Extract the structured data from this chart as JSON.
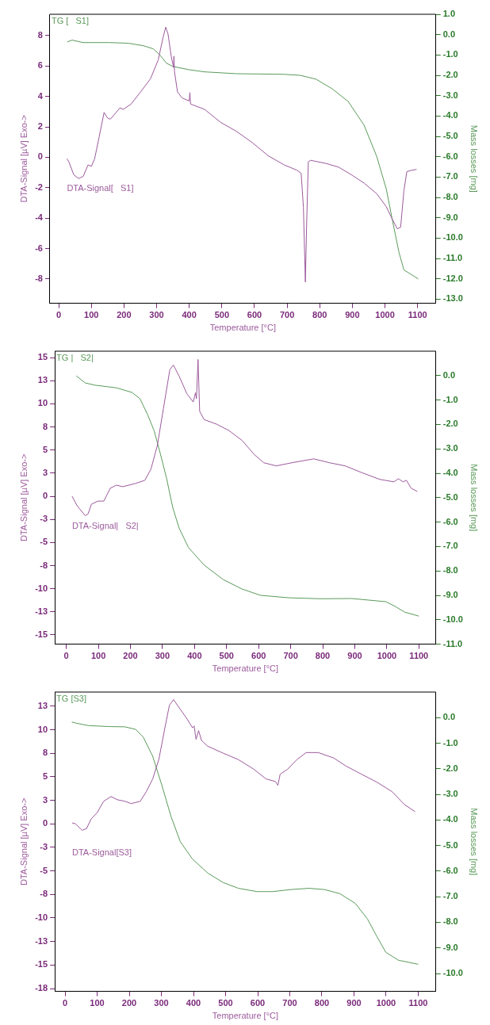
{
  "chart_data": [
    {
      "type": "line",
      "xlabel": "Temperature [°C]",
      "ylabel": "DTA-Signal [µV] Exo->",
      "y2label": "Mass losses [mg]",
      "legend": false,
      "xlim": [
        -27,
        1156
      ],
      "xticks": [
        0,
        100,
        200,
        300,
        400,
        500,
        600,
        700,
        800,
        900,
        1000,
        1100
      ],
      "ylim": [
        -9.6,
        9.4
      ],
      "yticks": [
        -8,
        -6,
        -4,
        -2,
        0,
        2,
        4,
        6,
        8
      ],
      "y2lim": [
        -13.2,
        1.0
      ],
      "y2ticks": [
        {
          "value": 1,
          "label": "1.0"
        },
        {
          "value": 0,
          "label": "0.0"
        },
        {
          "value": -1,
          "label": "-1.0"
        },
        {
          "value": -2,
          "label": "-2.0"
        },
        {
          "value": -3,
          "label": "-3.0"
        },
        {
          "value": -4,
          "label": "-4.0"
        },
        {
          "value": -5,
          "label": "-5.0"
        },
        {
          "value": -6,
          "label": "-6.0"
        },
        {
          "value": -7,
          "label": "-7.0"
        },
        {
          "value": -8,
          "label": "-8.0"
        },
        {
          "value": -9,
          "label": "-9.0"
        },
        {
          "value": -10,
          "label": "-10.0"
        },
        {
          "value": -11,
          "label": "-11.0"
        },
        {
          "value": -12,
          "label": "-12.0"
        },
        {
          "value": -13,
          "label": "-13.0"
        }
      ],
      "series": [
        {
          "name": "DTA-Signal[   S1]",
          "color": "#9c5a9c",
          "x": [
            25,
            31,
            46,
            61,
            75,
            90,
            100,
            110,
            124,
            139,
            149,
            158,
            168,
            188,
            198,
            222,
            251,
            281,
            305,
            320,
            328,
            335,
            345,
            352,
            353,
            355,
            364,
            378,
            400,
            402,
            404,
            447,
            496,
            545,
            594,
            642,
            691,
            730,
            743,
            750,
            756,
            760,
            765,
            772,
            818,
            858,
            897,
            936,
            975,
            1004,
            1023,
            1038,
            1048,
            1058,
            1067,
            1082,
            1097
          ],
          "values": [
            -0.1,
            -0.3,
            -1.15,
            -1.4,
            -1.25,
            -0.5,
            -0.6,
            -0.1,
            1.35,
            2.95,
            2.6,
            2.5,
            2.75,
            3.25,
            3.15,
            3.5,
            4.3,
            5.15,
            6.4,
            7.9,
            8.55,
            8.1,
            6.6,
            5.9,
            6.65,
            5.6,
            4.3,
            3.9,
            3.7,
            4.25,
            3.5,
            3.15,
            2.3,
            1.7,
            0.95,
            0.1,
            -0.5,
            -0.85,
            -1.05,
            -3.3,
            -8.2,
            -4.3,
            -0.3,
            -0.2,
            -0.4,
            -0.65,
            -1.15,
            -1.7,
            -2.4,
            -3.25,
            -4.1,
            -4.7,
            -4.6,
            -2.2,
            -0.95,
            -0.85,
            -0.8
          ]
        },
        {
          "name": "TG [   S1]",
          "color": "#5a9a5a",
          "axis": "y2",
          "x": [
            26,
            41,
            75,
            154,
            212,
            261,
            290,
            310,
            330,
            349,
            398,
            447,
            545,
            691,
            740,
            789,
            838,
            887,
            936,
            975,
            1004,
            1023,
            1043,
            1058,
            1102
          ],
          "values": [
            -0.36,
            -0.27,
            -0.39,
            -0.39,
            -0.42,
            -0.55,
            -0.7,
            -1.0,
            -1.4,
            -1.56,
            -1.72,
            -1.83,
            -1.92,
            -1.95,
            -2.0,
            -2.19,
            -2.66,
            -3.28,
            -4.45,
            -6.0,
            -7.58,
            -9.14,
            -10.7,
            -11.56,
            -12.0
          ]
        }
      ]
    },
    {
      "type": "line",
      "xlabel": "Temperature [°C]",
      "ylabel": "DTA-Signal [µV] Exo->",
      "y2label": "Mass losses [mg]",
      "legend": false,
      "xlim": [
        -36,
        1153
      ],
      "xticks": [
        0,
        100,
        200,
        300,
        400,
        500,
        600,
        700,
        800,
        900,
        1000,
        1100
      ],
      "ylim": [
        -16,
        15.7
      ],
      "yticks": [
        15,
        {
          "value": 12.5,
          "label": "13"
        },
        10,
        {
          "value": 7.5,
          "label": "8"
        },
        5,
        {
          "value": 2.5,
          "label": "3"
        },
        0,
        {
          "value": -2.5,
          "label": "-3"
        },
        -5,
        {
          "value": -7.5,
          "label": "-8"
        },
        -10,
        {
          "value": -12.5,
          "label": "-13"
        },
        -15
      ],
      "y2lim": [
        -11,
        1
      ],
      "y2ticks": [
        {
          "value": 0,
          "label": "0.0"
        },
        {
          "value": -1,
          "label": "-1.0"
        },
        {
          "value": -2,
          "label": "-2.0"
        },
        {
          "value": -3,
          "label": "-3.0"
        },
        {
          "value": -4,
          "label": "-4.0"
        },
        {
          "value": -5,
          "label": "-5.0"
        },
        {
          "value": -6,
          "label": "-6.0"
        },
        {
          "value": -7,
          "label": "-7.0"
        },
        {
          "value": -8,
          "label": "-8.0"
        },
        {
          "value": -9,
          "label": "-9.0"
        },
        {
          "value": -10,
          "label": "-10.0"
        },
        {
          "value": -11,
          "label": "-11.0"
        }
      ],
      "series": [
        {
          "name": "DTA-Signal|   S2|",
          "color": "#9c5a9c",
          "x": [
            18,
            34,
            59,
            68,
            78,
            98,
            117,
            137,
            156,
            176,
            215,
            245,
            264,
            284,
            303,
            323,
            334,
            352,
            376,
            396,
            403,
            406,
            411,
            416,
            430,
            469,
            508,
            548,
            587,
            616,
            655,
            704,
            772,
            821,
            870,
            919,
            978,
            1022,
            1036,
            1051,
            1061,
            1076,
            1095
          ],
          "values": [
            0,
            -1.04,
            -2.1,
            -1.9,
            -0.87,
            -0.52,
            -0.52,
            0.87,
            1.2,
            1.04,
            1.38,
            1.73,
            2.94,
            5.5,
            9.5,
            13.7,
            14.2,
            13.0,
            11.1,
            10.2,
            11.2,
            10.55,
            14.8,
            9.2,
            8.3,
            7.8,
            7.1,
            6.05,
            4.5,
            3.63,
            3.29,
            3.63,
            4.05,
            3.63,
            3.29,
            2.6,
            1.83,
            1.56,
            1.9,
            1.56,
            1.73,
            0.87,
            0.52
          ]
        },
        {
          "name": "TG |   S2|",
          "color": "#5a9a5a",
          "axis": "y2",
          "x": [
            31,
            59,
            88,
            156,
            205,
            230,
            254,
            274,
            293,
            313,
            332,
            352,
            381,
            430,
            489,
            548,
            606,
            694,
            792,
            890,
            997,
            1027,
            1056,
            1100
          ],
          "values": [
            -0.01,
            -0.3,
            -0.39,
            -0.5,
            -0.69,
            -0.95,
            -1.61,
            -2.26,
            -3.18,
            -4.22,
            -5.4,
            -6.25,
            -7.04,
            -7.76,
            -8.35,
            -8.74,
            -9.0,
            -9.1,
            -9.14,
            -9.13,
            -9.26,
            -9.46,
            -9.69,
            -9.85
          ]
        }
      ]
    },
    {
      "type": "line",
      "xlabel": "Temperature [°C]",
      "ylabel": "DTA-Signal [µV] Exo->",
      "y2label": "Mass losses [mg]",
      "legend": false,
      "xlim": [
        -32,
        1155
      ],
      "xticks": [
        0,
        100,
        200,
        300,
        400,
        500,
        600,
        700,
        800,
        900,
        1000,
        1100
      ],
      "ylim": [
        -17.8,
        14
      ],
      "yticks": [
        {
          "value": 12.5,
          "label": "13"
        },
        10,
        {
          "value": 7.5,
          "label": "8"
        },
        5,
        {
          "value": 2.5,
          "label": "3"
        },
        0,
        {
          "value": -2.5,
          "label": "-3"
        },
        -5,
        {
          "value": -7.5,
          "label": "-8"
        },
        -10,
        {
          "value": -12.5,
          "label": "-13"
        },
        -15,
        {
          "value": -17.5,
          "label": "-18"
        }
      ],
      "y2lim": [
        -10.7,
        1
      ],
      "y2ticks": [
        {
          "value": 0,
          "label": "0.0"
        },
        {
          "value": -1,
          "label": "-1.0"
        },
        {
          "value": -2,
          "label": "-2.0"
        },
        {
          "value": -3,
          "label": "-3.0"
        },
        {
          "value": -4,
          "label": "-4.0"
        },
        {
          "value": -5,
          "label": "-5.0"
        },
        {
          "value": -6,
          "label": "-6.0"
        },
        {
          "value": -7,
          "label": "-7.0"
        },
        {
          "value": -8,
          "label": "-8.0"
        },
        {
          "value": -9,
          "label": "-9.0"
        },
        {
          "value": -10,
          "label": "-10.0"
        }
      ],
      "series": [
        {
          "name": "DTA-Signal[S3]",
          "color": "#9c5a9c",
          "x": [
            22,
            33,
            53,
            67,
            81,
            100,
            120,
            143,
            163,
            187,
            206,
            234,
            253,
            273,
            292,
            311,
            325,
            338,
            354,
            378,
            397,
            402,
            408,
            416,
            425,
            444,
            493,
            540,
            588,
            626,
            655,
            663,
            670,
            693,
            722,
            751,
            789,
            837,
            875,
            923,
            971,
            1019,
            1057,
            1090
          ],
          "values": [
            0.1,
            0,
            -0.68,
            -0.51,
            0.51,
            1.19,
            2.39,
            2.9,
            2.56,
            2.39,
            2.15,
            2.39,
            3.41,
            4.77,
            6.82,
            10.2,
            12.6,
            13.2,
            12.4,
            11.25,
            10.2,
            10.4,
            8.97,
            9.9,
            8.86,
            8.25,
            7.5,
            6.82,
            5.8,
            4.77,
            4.5,
            4.09,
            5.28,
            5.8,
            6.82,
            7.57,
            7.57,
            6.99,
            6.14,
            5.28,
            4.43,
            3.41,
            2.05,
            1.3
          ]
        },
        {
          "name": "TG [S3]",
          "color": "#5a9a5a",
          "axis": "y2",
          "x": [
            21,
            33,
            72,
            139,
            187,
            220,
            244,
            273,
            301,
            330,
            359,
            397,
            445,
            493,
            540,
            598,
            646,
            703,
            760,
            808,
            856,
            904,
            942,
            971,
            999,
            1038,
            1100
          ],
          "values": [
            -0.17,
            -0.21,
            -0.31,
            -0.35,
            -0.36,
            -0.46,
            -0.77,
            -1.51,
            -2.62,
            -3.86,
            -4.85,
            -5.53,
            -6.08,
            -6.45,
            -6.67,
            -6.8,
            -6.8,
            -6.72,
            -6.67,
            -6.72,
            -6.88,
            -7.26,
            -7.87,
            -8.55,
            -9.17,
            -9.48,
            -9.64
          ]
        }
      ]
    }
  ]
}
